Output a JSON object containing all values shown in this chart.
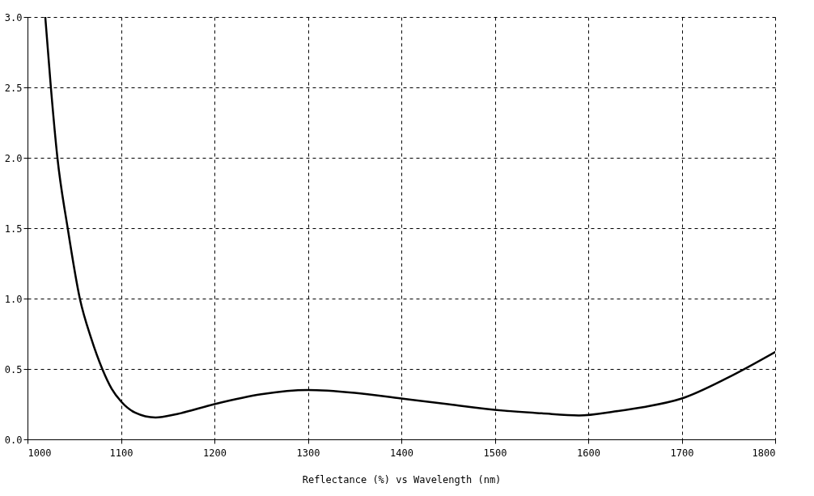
{
  "chart_data": {
    "type": "line",
    "xlabel": "Reflectance (%)  vs  Wavelength (nm)",
    "x": [
      1019,
      1025,
      1032,
      1043,
      1056,
      1068,
      1080,
      1090,
      1100,
      1115,
      1137,
      1160,
      1200,
      1250,
      1300,
      1350,
      1400,
      1450,
      1500,
      1550,
      1590,
      1630,
      1660,
      1700,
      1750,
      1800
    ],
    "series": [
      {
        "color": "#000000",
        "values": [
          3.0,
          2.5,
          2.0,
          1.5,
          1.0,
          0.72,
          0.5,
          0.36,
          0.27,
          0.19,
          0.155,
          0.18,
          0.25,
          0.32,
          0.35,
          0.33,
          0.29,
          0.25,
          0.21,
          0.185,
          0.17,
          0.2,
          0.23,
          0.29,
          0.44,
          0.62
        ]
      }
    ],
    "xlim": [
      1000,
      1800
    ],
    "xticks": [
      1000,
      1100,
      1200,
      1300,
      1400,
      1500,
      1600,
      1700,
      1800
    ],
    "ylim": [
      0,
      3
    ],
    "yticks": [
      {
        "value": 0,
        "label": "0.0"
      },
      {
        "value": 0.5,
        "label": "0.5"
      },
      {
        "value": 1,
        "label": "1.0"
      },
      {
        "value": 1.5,
        "label": "1.5"
      },
      {
        "value": 2,
        "label": "2.0"
      },
      {
        "value": 2.5,
        "label": "2.5"
      },
      {
        "value": 3,
        "label": "3.0"
      }
    ],
    "grid": true,
    "marker": "none",
    "line_style": "solid"
  }
}
